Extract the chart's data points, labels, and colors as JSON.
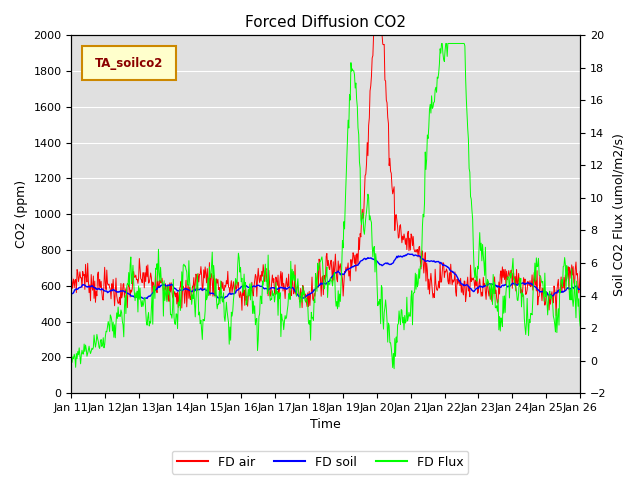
{
  "title": "Forced Diffusion CO2",
  "xlabel": "Time",
  "ylabel_left": "CO2 (ppm)",
  "ylabel_right": "Soil CO2 Flux (umol/m2/s)",
  "ylim_left": [
    0,
    2000
  ],
  "ylim_right": [
    -2,
    20
  ],
  "legend_label": "TA_soilco2",
  "legend_entries": [
    "FD air",
    "FD soil",
    "FD Flux"
  ],
  "line_colors": [
    "red",
    "blue",
    "lime"
  ],
  "background_color": "#e0e0e0",
  "title_fontsize": 11,
  "axis_fontsize": 9,
  "tick_fontsize": 8,
  "x_tick_labels": [
    "Jan 11",
    "Jan 12",
    "Jan 13",
    "Jan 14",
    "Jan 15",
    "Jan 16",
    "Jan 17",
    "Jan 18",
    "Jan 19",
    "Jan 20",
    "Jan 21",
    "Jan 22",
    "Jan 23",
    "Jan 24",
    "Jan 25",
    "Jan 26"
  ]
}
